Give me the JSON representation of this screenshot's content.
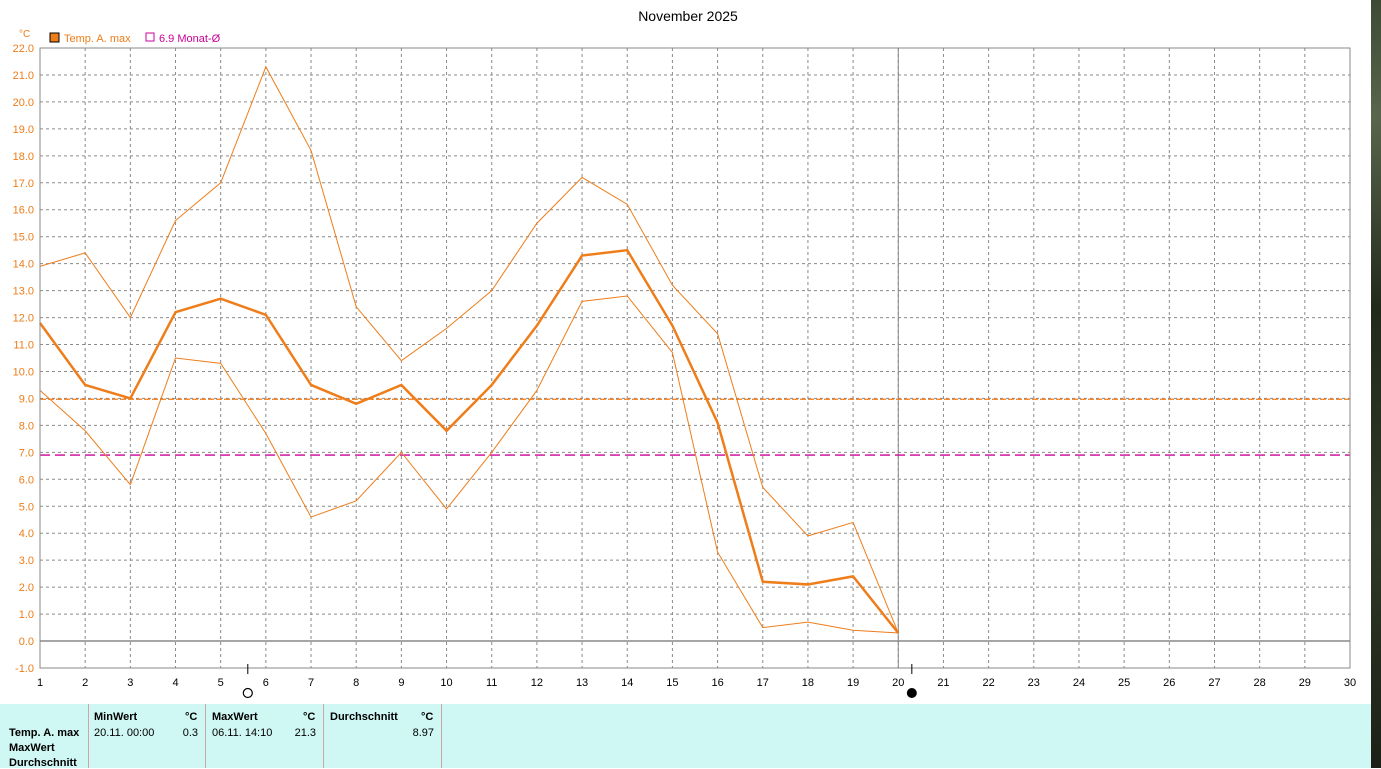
{
  "chart_data": {
    "type": "line",
    "title": "November 2025",
    "ylabel": "°C",
    "ylim": [
      -1,
      22
    ],
    "xlim": [
      1,
      30
    ],
    "y_ticks": [
      "-1.0",
      "0.0",
      "1.0",
      "2.0",
      "3.0",
      "4.0",
      "5.0",
      "6.0",
      "7.0",
      "8.0",
      "9.0",
      "10.0",
      "11.0",
      "12.0",
      "13.0",
      "14.0",
      "15.0",
      "16.0",
      "17.0",
      "18.0",
      "19.0",
      "20.0",
      "21.0",
      "22.0"
    ],
    "x_ticks": [
      "1",
      "2",
      "3",
      "4",
      "5",
      "6",
      "7",
      "8",
      "9",
      "10",
      "11",
      "12",
      "13",
      "14",
      "15",
      "16",
      "17",
      "18",
      "19",
      "20",
      "21",
      "22",
      "23",
      "24",
      "25",
      "26",
      "27",
      "28",
      "29",
      "30"
    ],
    "grid": true,
    "legend": [
      {
        "label": "Temp. A. max",
        "color": "#ee7d1a",
        "marker": "filled-square"
      },
      {
        "label": "6.9 Monat-Ø",
        "color": "#cc0099",
        "marker": "open-square"
      }
    ],
    "series": [
      {
        "name": "Temp. A. max",
        "role": "mean",
        "color": "#ee7d1a",
        "x": [
          1,
          2,
          3,
          4,
          5,
          6,
          7,
          8,
          9,
          10,
          11,
          12,
          13,
          14,
          15,
          16,
          17,
          18,
          19,
          20
        ],
        "y": [
          11.8,
          9.5,
          9.0,
          12.2,
          12.7,
          12.1,
          9.5,
          8.8,
          9.5,
          7.8,
          9.5,
          11.7,
          14.3,
          14.5,
          11.7,
          8.1,
          2.2,
          2.1,
          2.4,
          0.3
        ]
      },
      {
        "role": "upper",
        "color": "#ee7d1a",
        "x": [
          1,
          2,
          3,
          4,
          5,
          6,
          7,
          8,
          9,
          10,
          11,
          12,
          13,
          14,
          15,
          16,
          17,
          18,
          19,
          20
        ],
        "y": [
          13.9,
          14.4,
          12.0,
          15.6,
          17.0,
          21.3,
          18.2,
          12.4,
          10.4,
          11.6,
          13.0,
          15.5,
          17.2,
          16.2,
          13.2,
          11.4,
          5.7,
          3.9,
          4.4,
          0.3
        ]
      },
      {
        "role": "lower",
        "color": "#ee7d1a",
        "x": [
          1,
          2,
          3,
          4,
          5,
          6,
          7,
          8,
          9,
          10,
          11,
          12,
          13,
          14,
          15,
          16,
          17,
          18,
          19,
          20
        ],
        "y": [
          9.3,
          7.8,
          5.8,
          10.5,
          10.3,
          7.7,
          4.6,
          5.2,
          7.0,
          4.9,
          7.0,
          9.3,
          12.6,
          12.8,
          10.7,
          3.3,
          0.5,
          0.7,
          0.4,
          0.3
        ]
      }
    ],
    "reference_lines": [
      {
        "y": 8.97,
        "color": "#ee7d1a",
        "style": "dashed"
      },
      {
        "y": 6.9,
        "color": "#cc0099",
        "style": "dashed"
      }
    ],
    "current_day": 20,
    "moon_phases": [
      {
        "x": 5.6,
        "symbol": "○"
      },
      {
        "x": 20.3,
        "symbol": "●"
      }
    ]
  },
  "stats": {
    "row_labels": [
      "Temp. A. max",
      "MaxWert",
      "Durchschnitt"
    ],
    "min_header": "MinWert",
    "max_header": "MaxWert",
    "avg_header": "Durchschnitt",
    "unit": "°C",
    "min_time": "20.11.  00:00",
    "min_value": "0.3",
    "max_time": "06.11.  14:10",
    "max_value": "21.3",
    "avg_value": "8.97"
  }
}
